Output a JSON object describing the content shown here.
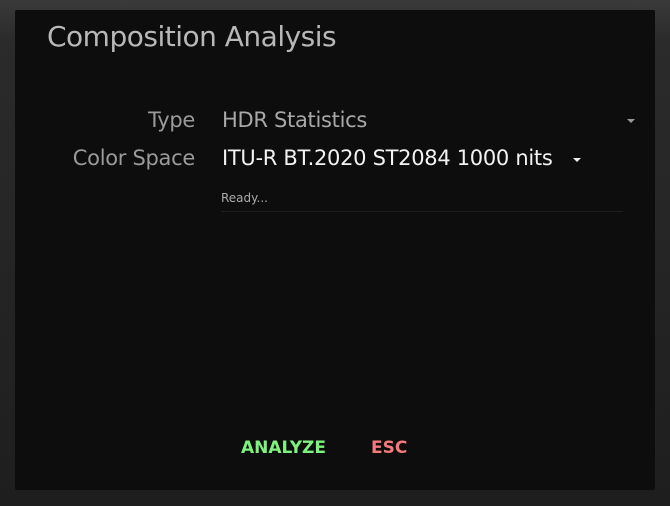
{
  "dialog": {
    "title": "Composition Analysis",
    "type_label": "Type",
    "type_value": "HDR Statistics",
    "color_space_label": "Color Space",
    "color_space_value": "ITU-R BT.2020 ST2084 1000 nits",
    "status": "Ready...",
    "analyze_label": "ANALYZE",
    "esc_label": "ESC"
  },
  "colors": {
    "analyze": "#7ef27e",
    "esc": "#f47a7a"
  }
}
